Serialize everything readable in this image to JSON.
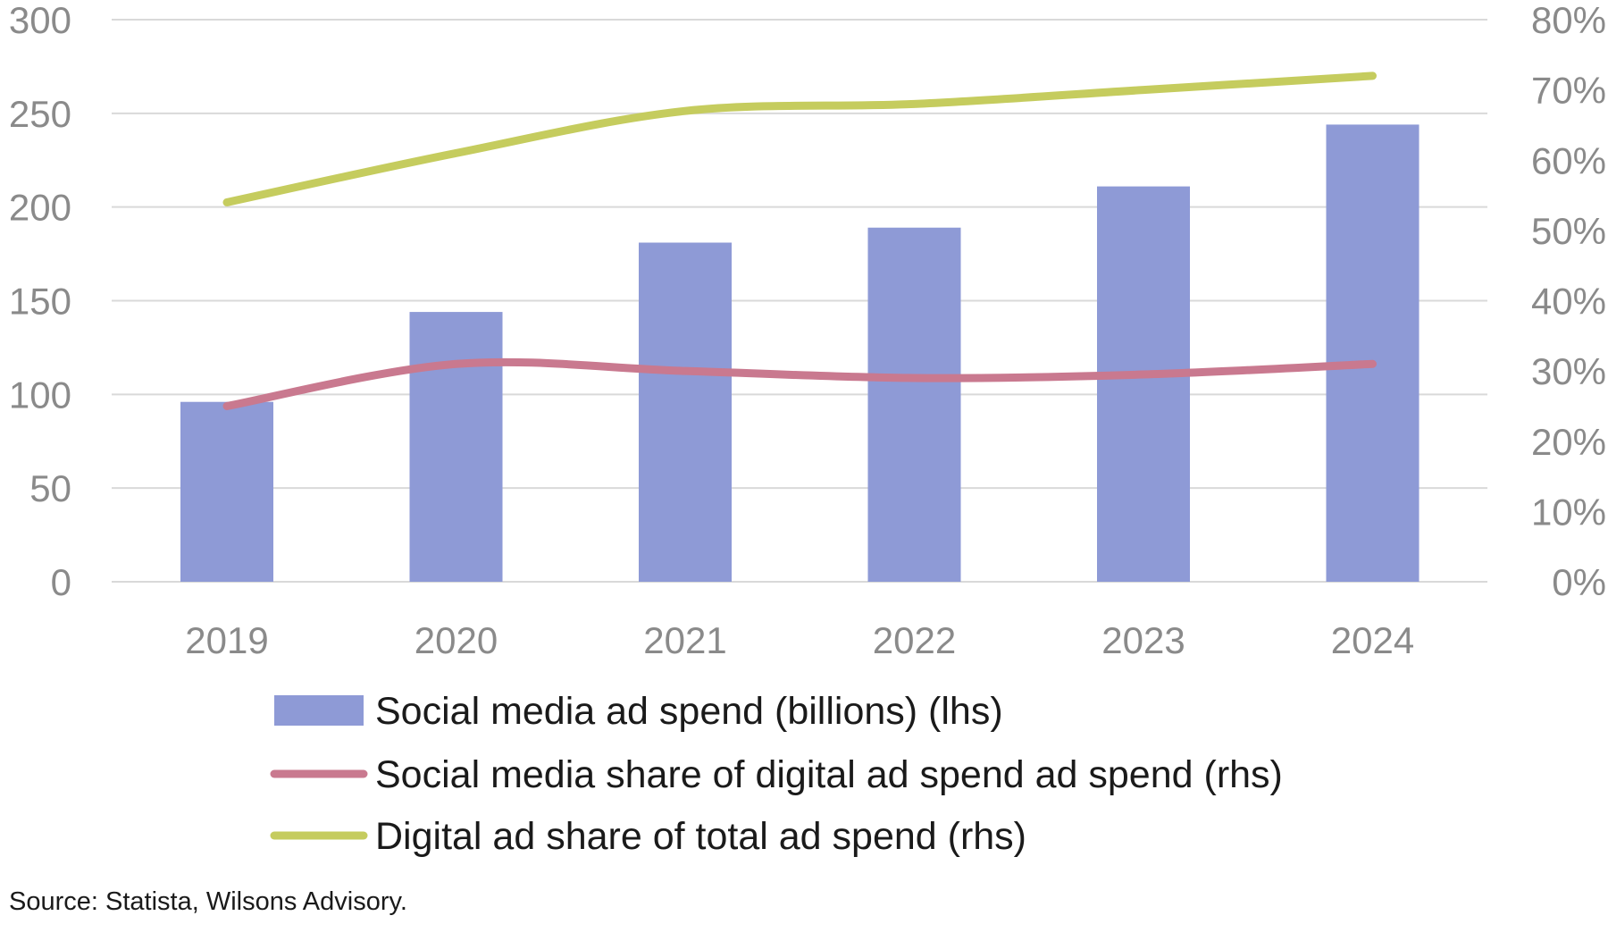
{
  "chart_data": {
    "type": "bar",
    "categories": [
      "2019",
      "2020",
      "2021",
      "2022",
      "2023",
      "2024"
    ],
    "series": [
      {
        "name": "Social media ad spend (billions) (lhs)",
        "type": "bar",
        "axis": "left",
        "color": "#8e9ad6",
        "values": [
          96,
          144,
          181,
          189,
          211,
          244
        ]
      },
      {
        "name": "Social media share of digital ad spend ad spend (rhs)",
        "type": "line",
        "axis": "right",
        "color": "#c9798f",
        "values": [
          25,
          31,
          30,
          29,
          29.5,
          31
        ]
      },
      {
        "name": "Digital ad share of total ad spend (rhs)",
        "type": "line",
        "axis": "right",
        "color": "#c5cc5e",
        "values": [
          54,
          61,
          67,
          68,
          70,
          72
        ]
      }
    ],
    "y_left": {
      "min": 0,
      "max": 300,
      "ticks": [
        "0",
        "50",
        "100",
        "150",
        "200",
        "250",
        "300"
      ]
    },
    "y_right": {
      "min": 0,
      "max": 80,
      "ticks": [
        "0%",
        "10%",
        "20%",
        "30%",
        "40%",
        "50%",
        "60%",
        "70%",
        "80%"
      ]
    },
    "grid": true,
    "legend_position": "bottom",
    "source": "Source: Statista, Wilsons Advisory."
  }
}
